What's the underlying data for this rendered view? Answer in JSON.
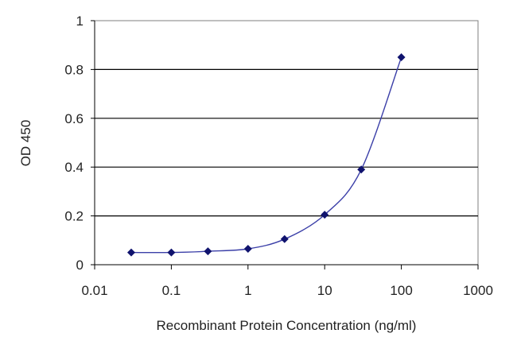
{
  "chart_data": {
    "type": "line",
    "xlabel": "Recombinant Protein Concentration (ng/ml)",
    "ylabel": "OD 450",
    "xscale": "log",
    "xlim": [
      0.01,
      1000
    ],
    "ylim": [
      0,
      1
    ],
    "x_ticks": [
      "0.01",
      "0.1",
      "1",
      "10",
      "100",
      "1000"
    ],
    "y_ticks": [
      "0",
      "0.2",
      "0.4",
      "0.6",
      "0.8",
      "1"
    ],
    "grid": "horizontal",
    "legend": "none",
    "series": [
      {
        "x": [
          0.03,
          0.1,
          0.3,
          1,
          3,
          10,
          30,
          100
        ],
        "y": [
          0.05,
          0.05,
          0.055,
          0.065,
          0.105,
          0.205,
          0.39,
          0.85
        ]
      }
    ],
    "colors": {
      "line": "#3b3fa8",
      "marker": "#10136e",
      "grid": "#000000",
      "frame": "#7f7f7f"
    }
  }
}
